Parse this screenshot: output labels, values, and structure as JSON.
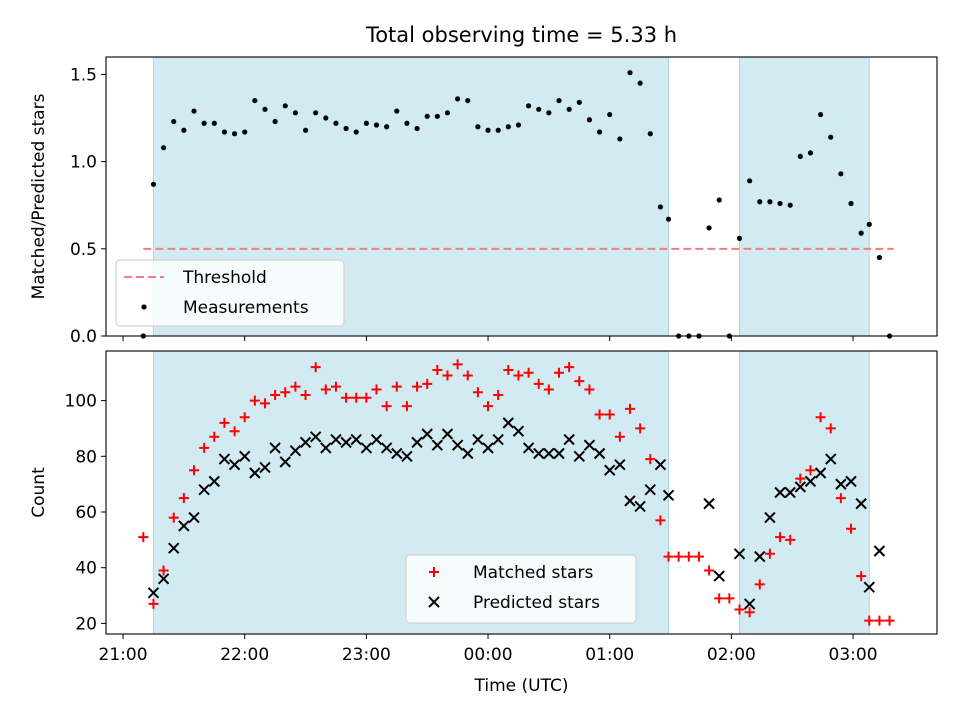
{
  "title": "Total observing time = 5.33 h",
  "colors": {
    "shade": "#add8e6",
    "threshold": "#f08080",
    "measurement": "#000000",
    "matched": "#ff0000",
    "predicted": "#000000"
  },
  "chart_data": [
    {
      "type": "scatter",
      "title": "Total observing time = 5.33 h",
      "xlabel": "",
      "ylabel": "Matched/Predicted stars",
      "x_tick_labels": [
        "21:00",
        "22:00",
        "23:00",
        "00:00",
        "01:00",
        "02:00",
        "03:00"
      ],
      "xlim_hours_after_21utc": [
        -0.14,
        6.69
      ],
      "ylim": [
        0,
        1.6
      ],
      "y_ticks": [
        "0.0",
        "0.5",
        "1.0",
        "1.5"
      ],
      "grid": false,
      "legend_position": "lower-left",
      "observing_windows": [
        [
          "21:15",
          "01:29"
        ],
        [
          "02:04",
          "03:08"
        ]
      ],
      "threshold": {
        "name": "Threshold",
        "value": 0.5,
        "x_range": [
          "21:10",
          "03:20"
        ],
        "style": "dashed"
      },
      "series": [
        {
          "name": "Measurements",
          "marker": "dot",
          "points": [
            [
              "21:10",
              0.0
            ],
            [
              "21:15",
              0.87
            ],
            [
              "21:20",
              1.08
            ],
            [
              "21:25",
              1.23
            ],
            [
              "21:30",
              1.18
            ],
            [
              "21:35",
              1.29
            ],
            [
              "21:40",
              1.22
            ],
            [
              "21:45",
              1.22
            ],
            [
              "21:50",
              1.17
            ],
            [
              "21:55",
              1.16
            ],
            [
              "22:00",
              1.17
            ],
            [
              "22:05",
              1.35
            ],
            [
              "22:10",
              1.3
            ],
            [
              "22:15",
              1.23
            ],
            [
              "22:20",
              1.32
            ],
            [
              "22:25",
              1.28
            ],
            [
              "22:30",
              1.18
            ],
            [
              "22:35",
              1.28
            ],
            [
              "22:40",
              1.25
            ],
            [
              "22:45",
              1.22
            ],
            [
              "22:50",
              1.19
            ],
            [
              "22:55",
              1.17
            ],
            [
              "23:00",
              1.22
            ],
            [
              "23:05",
              1.21
            ],
            [
              "23:10",
              1.2
            ],
            [
              "23:15",
              1.29
            ],
            [
              "23:20",
              1.22
            ],
            [
              "23:25",
              1.19
            ],
            [
              "23:30",
              1.26
            ],
            [
              "23:35",
              1.26
            ],
            [
              "23:40",
              1.28
            ],
            [
              "23:45",
              1.36
            ],
            [
              "23:50",
              1.35
            ],
            [
              "23:55",
              1.2
            ],
            [
              "00:00",
              1.18
            ],
            [
              "00:05",
              1.18
            ],
            [
              "00:10",
              1.2
            ],
            [
              "00:15",
              1.21
            ],
            [
              "00:20",
              1.32
            ],
            [
              "00:25",
              1.3
            ],
            [
              "00:30",
              1.28
            ],
            [
              "00:35",
              1.35
            ],
            [
              "00:40",
              1.3
            ],
            [
              "00:45",
              1.34
            ],
            [
              "00:50",
              1.24
            ],
            [
              "00:55",
              1.17
            ],
            [
              "01:00",
              1.27
            ],
            [
              "01:05",
              1.13
            ],
            [
              "01:10",
              1.51
            ],
            [
              "01:15",
              1.45
            ],
            [
              "01:20",
              1.16
            ],
            [
              "01:25",
              0.74
            ],
            [
              "01:29",
              0.67
            ],
            [
              "01:34",
              0.0
            ],
            [
              "01:39",
              0.0
            ],
            [
              "01:44",
              0.0
            ],
            [
              "01:49",
              0.62
            ],
            [
              "01:54",
              0.78
            ],
            [
              "01:59",
              0.0
            ],
            [
              "02:04",
              0.56
            ],
            [
              "02:09",
              0.89
            ],
            [
              "02:14",
              0.77
            ],
            [
              "02:19",
              0.77
            ],
            [
              "02:24",
              0.76
            ],
            [
              "02:29",
              0.75
            ],
            [
              "02:34",
              1.03
            ],
            [
              "02:39",
              1.05
            ],
            [
              "02:44",
              1.27
            ],
            [
              "02:49",
              1.14
            ],
            [
              "02:54",
              0.93
            ],
            [
              "02:59",
              0.76
            ],
            [
              "03:04",
              0.59
            ],
            [
              "03:08",
              0.64
            ],
            [
              "03:13",
              0.45
            ],
            [
              "03:18",
              0.0
            ]
          ]
        }
      ]
    },
    {
      "type": "scatter",
      "title": "",
      "xlabel": "Time (UTC)",
      "ylabel": "Count",
      "x_tick_labels": [
        "21:00",
        "22:00",
        "23:00",
        "00:00",
        "01:00",
        "02:00",
        "03:00"
      ],
      "xlim_hours_after_21utc": [
        -0.14,
        6.69
      ],
      "ylim": [
        16.2,
        117.8
      ],
      "y_ticks": [
        "20",
        "40",
        "60",
        "80",
        "100"
      ],
      "grid": false,
      "legend_position": "lower-center",
      "observing_windows": [
        [
          "21:15",
          "01:29"
        ],
        [
          "02:04",
          "03:08"
        ]
      ],
      "series": [
        {
          "name": "Matched stars",
          "marker": "plus",
          "points": [
            [
              "21:10",
              51
            ],
            [
              "21:15",
              27
            ],
            [
              "21:20",
              39
            ],
            [
              "21:25",
              58
            ],
            [
              "21:30",
              65
            ],
            [
              "21:35",
              75
            ],
            [
              "21:40",
              83
            ],
            [
              "21:45",
              87
            ],
            [
              "21:50",
              92
            ],
            [
              "21:55",
              89
            ],
            [
              "22:00",
              94
            ],
            [
              "22:05",
              100
            ],
            [
              "22:10",
              99
            ],
            [
              "22:15",
              102
            ],
            [
              "22:20",
              103
            ],
            [
              "22:25",
              105
            ],
            [
              "22:30",
              102
            ],
            [
              "22:35",
              112
            ],
            [
              "22:40",
              104
            ],
            [
              "22:45",
              105
            ],
            [
              "22:50",
              101
            ],
            [
              "22:55",
              101
            ],
            [
              "23:00",
              101
            ],
            [
              "23:05",
              104
            ],
            [
              "23:10",
              98
            ],
            [
              "23:15",
              105
            ],
            [
              "23:20",
              98
            ],
            [
              "23:25",
              105
            ],
            [
              "23:30",
              106
            ],
            [
              "23:35",
              111
            ],
            [
              "23:40",
              109
            ],
            [
              "23:45",
              113
            ],
            [
              "23:50",
              109
            ],
            [
              "23:55",
              103
            ],
            [
              "00:00",
              98
            ],
            [
              "00:05",
              102
            ],
            [
              "00:10",
              111
            ],
            [
              "00:15",
              109
            ],
            [
              "00:20",
              110
            ],
            [
              "00:25",
              106
            ],
            [
              "00:30",
              104
            ],
            [
              "00:35",
              110
            ],
            [
              "00:40",
              112
            ],
            [
              "00:45",
              107
            ],
            [
              "00:50",
              104
            ],
            [
              "00:55",
              95
            ],
            [
              "01:00",
              95
            ],
            [
              "01:05",
              87
            ],
            [
              "01:10",
              97
            ],
            [
              "01:15",
              90
            ],
            [
              "01:20",
              79
            ],
            [
              "01:25",
              57
            ],
            [
              "01:29",
              44
            ],
            [
              "01:34",
              44
            ],
            [
              "01:39",
              44
            ],
            [
              "01:44",
              44
            ],
            [
              "01:49",
              39
            ],
            [
              "01:54",
              29
            ],
            [
              "01:59",
              29
            ],
            [
              "02:04",
              25
            ],
            [
              "02:09",
              24
            ],
            [
              "02:14",
              34
            ],
            [
              "02:19",
              45
            ],
            [
              "02:24",
              51
            ],
            [
              "02:29",
              50
            ],
            [
              "02:34",
              72
            ],
            [
              "02:39",
              75
            ],
            [
              "02:44",
              94
            ],
            [
              "02:49",
              90
            ],
            [
              "02:54",
              65
            ],
            [
              "02:59",
              54
            ],
            [
              "03:04",
              37
            ],
            [
              "03:08",
              21
            ],
            [
              "03:13",
              21
            ],
            [
              "03:18",
              21
            ]
          ]
        },
        {
          "name": "Predicted stars",
          "marker": "x",
          "points": [
            [
              "21:15",
              31
            ],
            [
              "21:20",
              36
            ],
            [
              "21:25",
              47
            ],
            [
              "21:30",
              55
            ],
            [
              "21:35",
              58
            ],
            [
              "21:40",
              68
            ],
            [
              "21:45",
              71
            ],
            [
              "21:50",
              79
            ],
            [
              "21:55",
              77
            ],
            [
              "22:00",
              80
            ],
            [
              "22:05",
              74
            ],
            [
              "22:10",
              76
            ],
            [
              "22:15",
              83
            ],
            [
              "22:20",
              78
            ],
            [
              "22:25",
              82
            ],
            [
              "22:30",
              85
            ],
            [
              "22:35",
              87
            ],
            [
              "22:40",
              83
            ],
            [
              "22:45",
              86
            ],
            [
              "22:50",
              85
            ],
            [
              "22:55",
              86
            ],
            [
              "23:00",
              83
            ],
            [
              "23:05",
              86
            ],
            [
              "23:10",
              83
            ],
            [
              "23:15",
              81
            ],
            [
              "23:20",
              80
            ],
            [
              "23:25",
              85
            ],
            [
              "23:30",
              88
            ],
            [
              "23:35",
              84
            ],
            [
              "23:40",
              88
            ],
            [
              "23:45",
              84
            ],
            [
              "23:50",
              81
            ],
            [
              "23:55",
              86
            ],
            [
              "00:00",
              83
            ],
            [
              "00:05",
              86
            ],
            [
              "00:10",
              92
            ],
            [
              "00:15",
              89
            ],
            [
              "00:20",
              83
            ],
            [
              "00:25",
              81
            ],
            [
              "00:30",
              81
            ],
            [
              "00:35",
              81
            ],
            [
              "00:40",
              86
            ],
            [
              "00:45",
              80
            ],
            [
              "00:50",
              84
            ],
            [
              "00:55",
              81
            ],
            [
              "01:00",
              75
            ],
            [
              "01:05",
              77
            ],
            [
              "01:10",
              64
            ],
            [
              "01:15",
              62
            ],
            [
              "01:20",
              68
            ],
            [
              "01:25",
              77
            ],
            [
              "01:29",
              66
            ],
            [
              "01:49",
              63
            ],
            [
              "01:54",
              37
            ],
            [
              "02:04",
              45
            ],
            [
              "02:09",
              27
            ],
            [
              "02:14",
              44
            ],
            [
              "02:19",
              58
            ],
            [
              "02:24",
              67
            ],
            [
              "02:29",
              67
            ],
            [
              "02:34",
              69
            ],
            [
              "02:39",
              71
            ],
            [
              "02:44",
              74
            ],
            [
              "02:49",
              79
            ],
            [
              "02:54",
              70
            ],
            [
              "02:59",
              71
            ],
            [
              "03:04",
              63
            ],
            [
              "03:08",
              33
            ],
            [
              "03:13",
              46
            ]
          ]
        }
      ]
    }
  ]
}
